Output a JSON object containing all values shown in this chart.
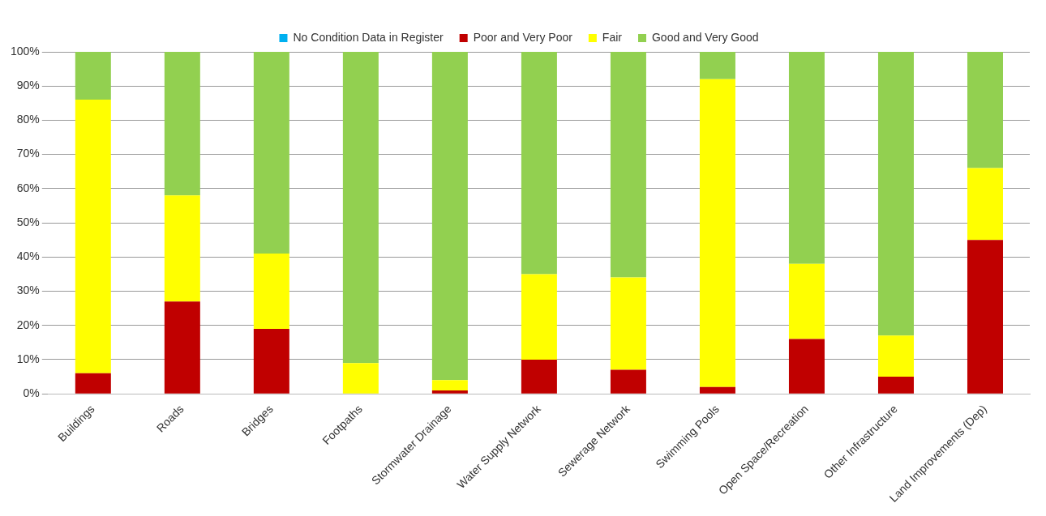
{
  "chart_data": {
    "type": "bar",
    "stacked": true,
    "categories": [
      "Buildings",
      "Roads",
      "Bridges",
      "Footpaths",
      "Stormwater Drainage",
      "Water Supply Network",
      "Sewerage Network",
      "Swimming Pools",
      "Open Space/Recreation",
      "Other Infrastructure",
      "Land Improvements (Dep)"
    ],
    "series": [
      {
        "name": "No Condition Data in Register",
        "color": "#00b0f0",
        "values": [
          0,
          0,
          0,
          0,
          0,
          0,
          0,
          0,
          0,
          0,
          0
        ]
      },
      {
        "name": "Poor and Very Poor",
        "color": "#c00000",
        "values": [
          6,
          27,
          19,
          0,
          1,
          10,
          7,
          2,
          16,
          5,
          45
        ]
      },
      {
        "name": "Fair",
        "color": "#ffff00",
        "values": [
          80,
          31,
          22,
          9,
          3,
          25,
          27,
          90,
          22,
          12,
          21
        ]
      },
      {
        "name": "Good and Very Good",
        "color": "#92d050",
        "values": [
          14,
          42,
          59,
          91,
          96,
          65,
          66,
          8,
          62,
          83,
          34
        ]
      }
    ],
    "ylim": [
      0,
      100
    ],
    "yticks": [
      {
        "value": 0,
        "label": "0%"
      },
      {
        "value": 10,
        "label": "10%"
      },
      {
        "value": 20,
        "label": "20%"
      },
      {
        "value": 30,
        "label": "30%"
      },
      {
        "value": 40,
        "label": "40%"
      },
      {
        "value": 50,
        "label": "50%"
      },
      {
        "value": 60,
        "label": "60%"
      },
      {
        "value": 70,
        "label": "70%"
      },
      {
        "value": 80,
        "label": "80%"
      },
      {
        "value": 90,
        "label": "90%"
      },
      {
        "value": 100,
        "label": "100%"
      }
    ],
    "grid": "y",
    "legend": "top"
  }
}
